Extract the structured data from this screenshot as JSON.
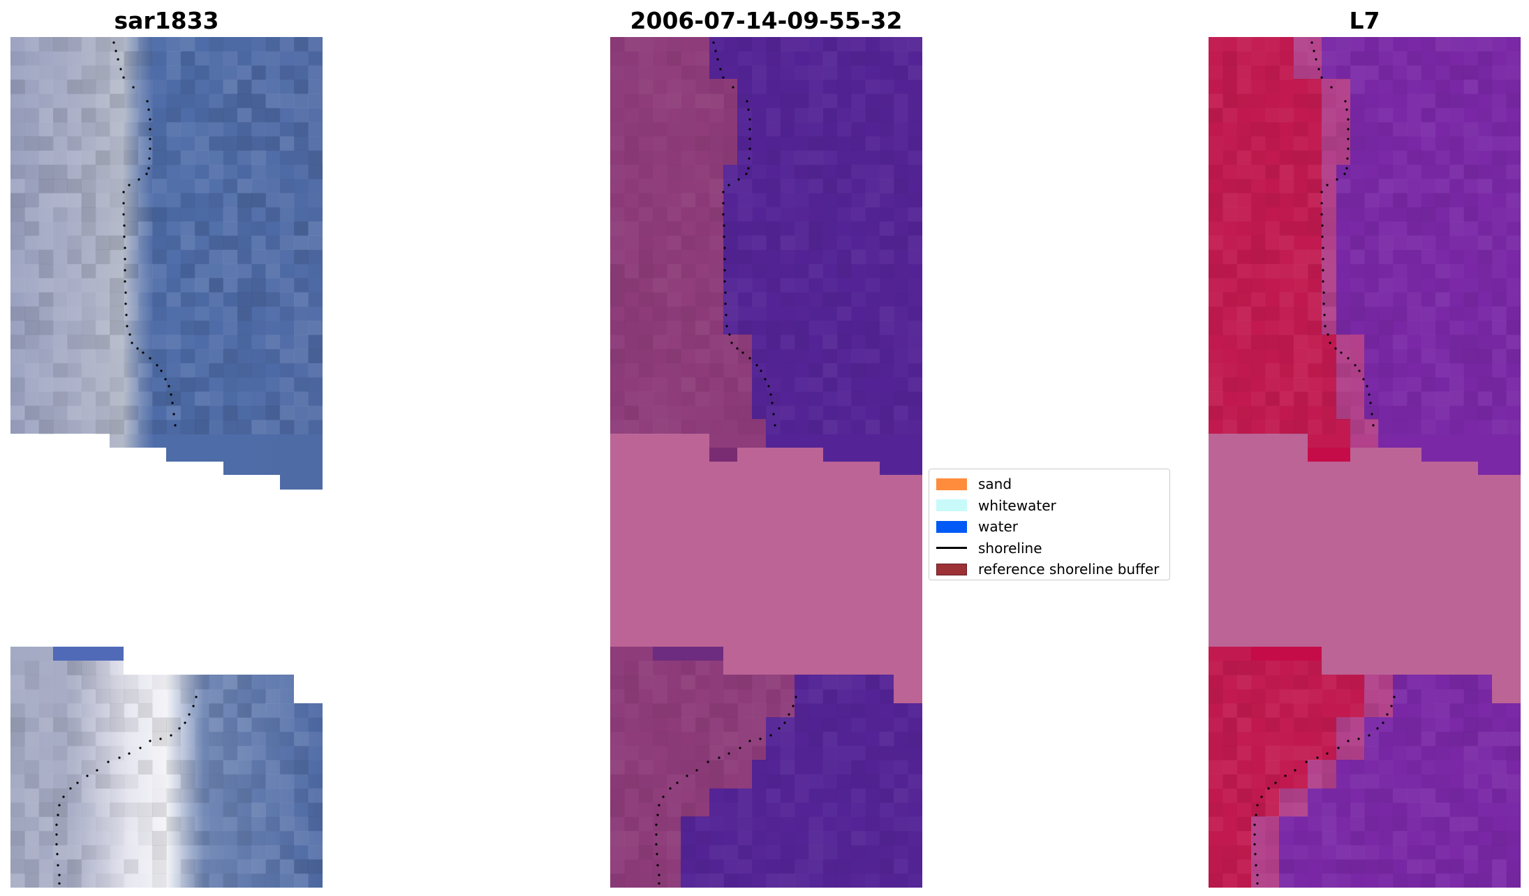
{
  "panels": [
    {
      "title": "sar1833"
    },
    {
      "title": "2006-07-14-09-55-32"
    },
    {
      "title": "L7"
    }
  ],
  "legend": [
    {
      "label": "sand",
      "color": "#ff8c3c"
    },
    {
      "label": "whitewater",
      "color": "#c8fafa"
    },
    {
      "label": "water",
      "color": "#005af5"
    },
    {
      "label": "shoreline",
      "color": "#000000"
    },
    {
      "label": "reference shoreline buffer",
      "color": "#9c3236"
    }
  ]
}
